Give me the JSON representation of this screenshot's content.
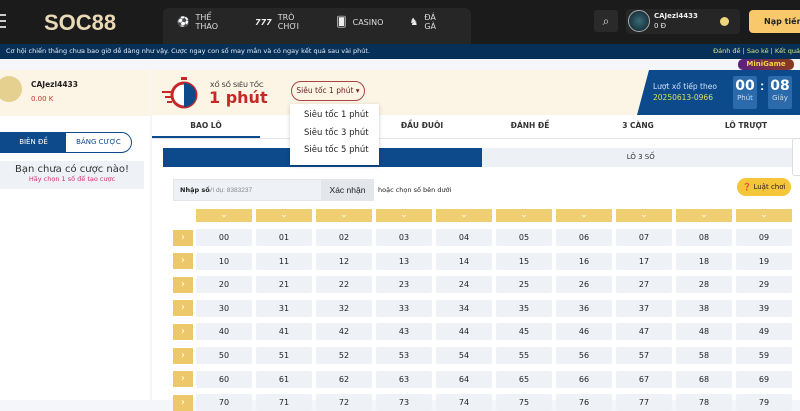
{
  "header": {
    "logo": "SOC88",
    "nav": [
      {
        "icon": "soccer-ball-icon",
        "glyph": "⚽",
        "label": "THỂ THAO"
      },
      {
        "icon": "slot-777-icon",
        "glyph": "777",
        "label": "TRÒ CHƠI"
      },
      {
        "icon": "casino-cards-icon",
        "glyph": "🂠",
        "label": "CASINO"
      },
      {
        "icon": "rooster-icon",
        "glyph": "♞",
        "label": "ĐÁ GÀ"
      }
    ],
    "search_icon": "search-icon",
    "user": {
      "name": "CAJezl4433",
      "balance": "0 Đ"
    },
    "deposit_label": "Nạp tiền"
  },
  "ticker": {
    "text": "Cơ hội chiến thắng chưa bao giờ dễ dàng như vậy. Cược ngay con số may mắn và có ngay kết quả sau vài phút.",
    "links": "Đánh đề | Sao kê | Kết quả"
  },
  "left": {
    "name": "CAJezl4433",
    "balance": "0.00 K",
    "tabs": [
      "BIÊN ĐỀ",
      "BẢNG CƯỢC"
    ],
    "empty_title": "Bạn chưa có cược nào!",
    "empty_hint": "Hãy chọn 1 số để tạo cược"
  },
  "game": {
    "subtitle": "XỔ SỐ SIÊU TỐC",
    "title": "1 phút",
    "select_value": "Siêu tốc 1 phút ▾",
    "options": [
      "Siêu tốc 1 phút",
      "Siêu tốc 3 phút",
      "Siêu tốc 5 phút"
    ],
    "next_label": "Lượt xổ tiếp theo",
    "draw_id": "20250613-0966",
    "minutes": "00",
    "minutes_unit": "Phút",
    "seconds": "08",
    "seconds_unit": "Giây"
  },
  "tabs": [
    "BAO LÔ",
    "",
    "ĐẦU ĐUÔI",
    "ĐÁNH ĐỀ",
    "3 CÀNG",
    "LÔ TRƯỢT"
  ],
  "subtabs": [
    "",
    "LÔ 3 SỐ"
  ],
  "input": {
    "label": "Nhập số",
    "placeholder": "Ví dụ: 8383237",
    "confirm": "Xác nhận",
    "or_pick": "hoặc chọn số bên dưới",
    "rules": "❓ Luật chơi"
  },
  "grid": {
    "rows": [
      [
        "00",
        "01",
        "02",
        "03",
        "04",
        "05",
        "06",
        "07",
        "08",
        "09"
      ],
      [
        "10",
        "11",
        "12",
        "13",
        "14",
        "15",
        "16",
        "17",
        "18",
        "19"
      ],
      [
        "20",
        "21",
        "22",
        "23",
        "24",
        "25",
        "26",
        "27",
        "28",
        "29"
      ],
      [
        "30",
        "31",
        "32",
        "33",
        "34",
        "35",
        "36",
        "37",
        "38",
        "39"
      ],
      [
        "40",
        "41",
        "42",
        "43",
        "44",
        "45",
        "46",
        "47",
        "48",
        "49"
      ],
      [
        "50",
        "51",
        "52",
        "53",
        "54",
        "55",
        "56",
        "57",
        "58",
        "59"
      ],
      [
        "60",
        "61",
        "62",
        "63",
        "64",
        "65",
        "66",
        "67",
        "68",
        "69"
      ],
      [
        "70",
        "71",
        "72",
        "73",
        "74",
        "75",
        "76",
        "77",
        "78",
        "79"
      ]
    ]
  },
  "minigame": {
    "label": "MiniGame"
  },
  "colors": {
    "brand_blue": "#0d4a8c",
    "accent_yellow": "#f0cf72",
    "red": "#c62828",
    "header_bg": "#1b1b1c"
  }
}
